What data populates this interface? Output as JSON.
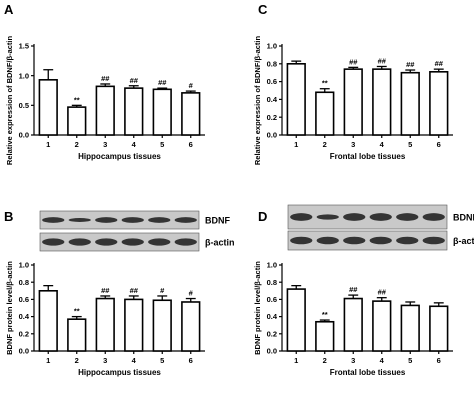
{
  "chart_data": [
    {
      "panel": "A",
      "type": "bar",
      "categories": [
        "1",
        "2",
        "3",
        "4",
        "5",
        "6"
      ],
      "values": [
        0.93,
        0.47,
        0.82,
        0.79,
        0.77,
        0.71
      ],
      "errors": [
        0.17,
        0.03,
        0.04,
        0.04,
        0.02,
        0.03
      ],
      "significance": [
        "",
        "**",
        "##",
        "##",
        "##",
        "#"
      ],
      "ylim": [
        0.0,
        1.5
      ],
      "yticks": [
        "0.0",
        "0.5",
        "1.0",
        "1.5"
      ],
      "ylabel": "Relative expression of BDNF/β-actin",
      "xlabel": "Hippocampus tissues"
    },
    {
      "panel": "C",
      "type": "bar",
      "categories": [
        "1",
        "2",
        "3",
        "4",
        "5",
        "6"
      ],
      "values": [
        0.8,
        0.48,
        0.74,
        0.74,
        0.7,
        0.71
      ],
      "errors": [
        0.03,
        0.04,
        0.02,
        0.03,
        0.03,
        0.03
      ],
      "significance": [
        "",
        "**",
        "##",
        "##",
        "##",
        "##"
      ],
      "ylim": [
        0.0,
        1.0
      ],
      "yticks": [
        "0.0",
        "0.2",
        "0.4",
        "0.6",
        "0.8",
        "1.0"
      ],
      "ylabel": "Relative expression of BDNF/β-actin",
      "xlabel": "Frontal lobe tissues"
    },
    {
      "panel": "B",
      "type": "bar",
      "categories": [
        "1",
        "2",
        "3",
        "4",
        "5",
        "6"
      ],
      "values": [
        0.7,
        0.37,
        0.61,
        0.6,
        0.59,
        0.57
      ],
      "errors": [
        0.06,
        0.03,
        0.03,
        0.04,
        0.05,
        0.04
      ],
      "significance": [
        "",
        "**",
        "##",
        "##",
        "#",
        "#"
      ],
      "ylim": [
        0.0,
        1.0
      ],
      "yticks": [
        "0.0",
        "0.2",
        "0.4",
        "0.6",
        "0.8",
        "1.0"
      ],
      "ylabel": "BDNF protein level/β-actin",
      "xlabel": "Hippocampus tissues",
      "blot_labels": [
        "BDNF",
        "β-actin"
      ]
    },
    {
      "panel": "D",
      "type": "bar",
      "categories": [
        "1",
        "2",
        "3",
        "4",
        "5",
        "6"
      ],
      "values": [
        0.72,
        0.34,
        0.61,
        0.58,
        0.53,
        0.52
      ],
      "errors": [
        0.04,
        0.02,
        0.04,
        0.04,
        0.04,
        0.04
      ],
      "significance": [
        "",
        "**",
        "##",
        "##",
        "",
        ""
      ],
      "ylim": [
        0.0,
        1.0
      ],
      "yticks": [
        "0.0",
        "0.2",
        "0.4",
        "0.6",
        "0.8",
        "1.0"
      ],
      "ylabel": "BDNF protein level/β-actin",
      "xlabel": "Frontal lobe tissues",
      "blot_labels": [
        "BDNF",
        "β-actin"
      ]
    }
  ],
  "colors": {
    "bar_fill": "#ffffff",
    "bar_stroke": "#000000",
    "blot_background": "#c9c9c9",
    "blot_band": "#1a1a1a"
  }
}
